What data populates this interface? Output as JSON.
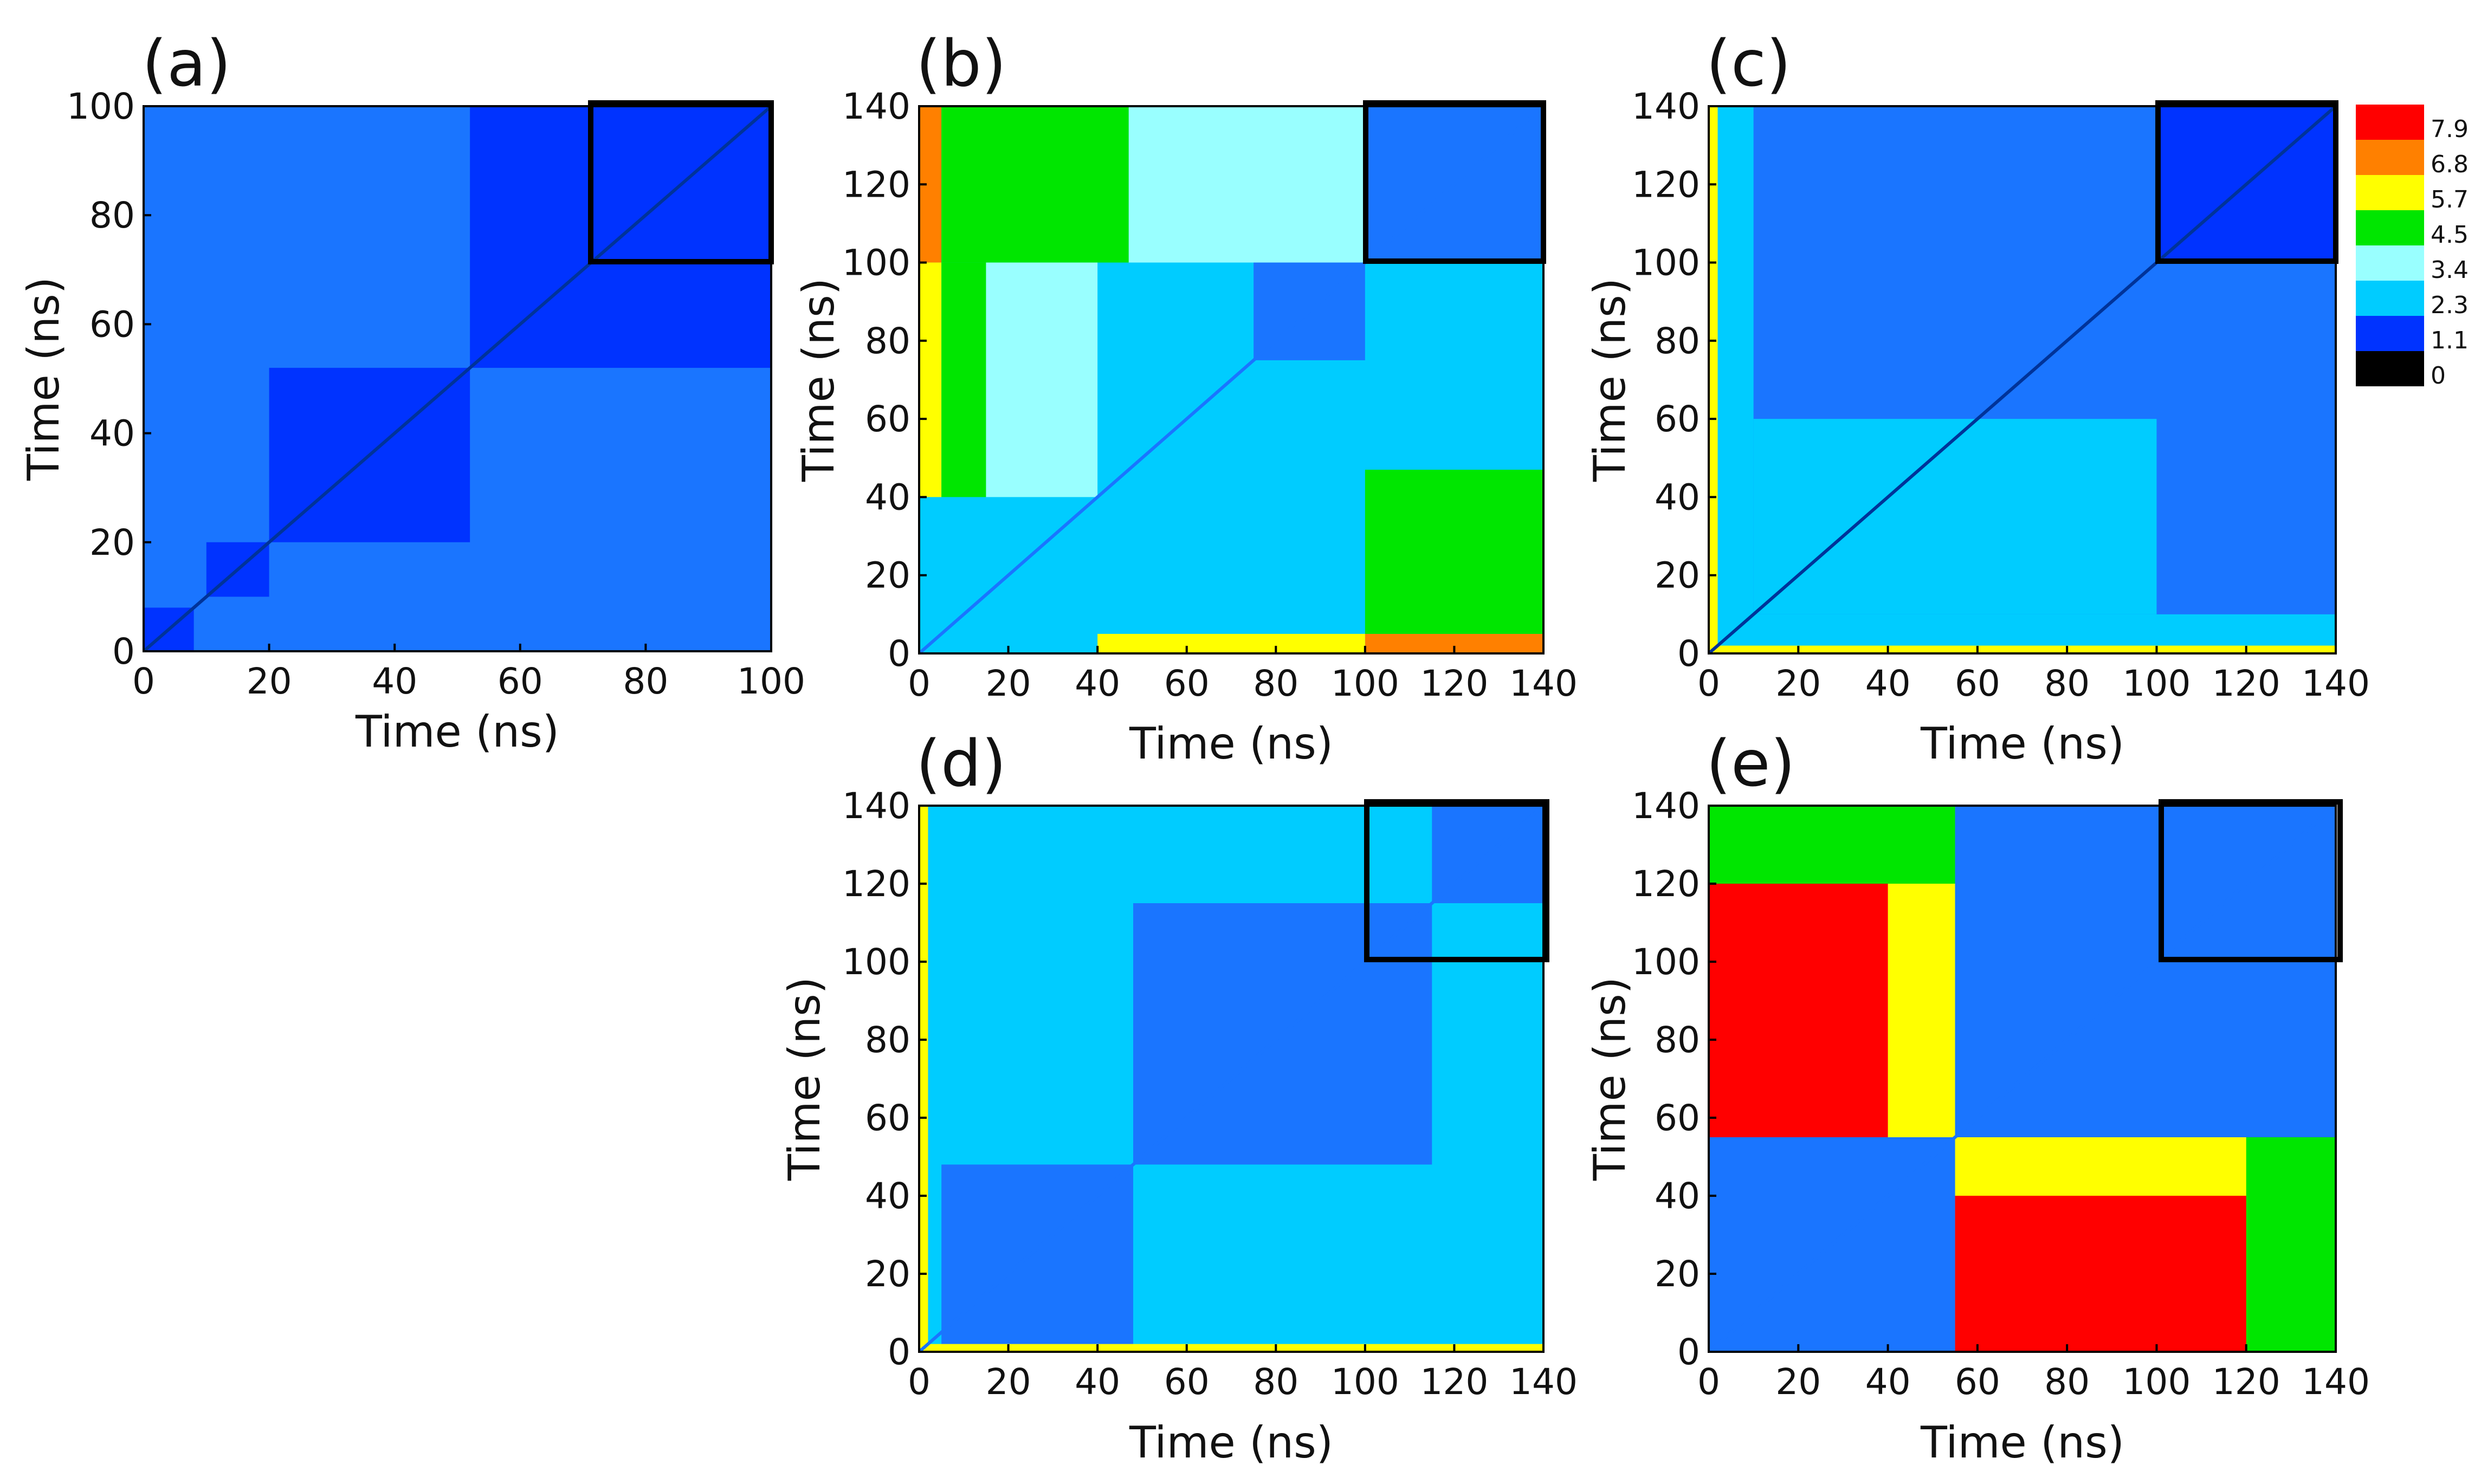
{
  "figure": {
    "colorbar": {
      "labels": [
        "7.9",
        "6.8",
        "5.7",
        "4.5",
        "3.4",
        "2.3",
        "1.1",
        "0"
      ],
      "colors": [
        "#ff0000",
        "#ff8000",
        "#ffff00",
        "#00e600",
        "#99ffff",
        "#00ccff",
        "#0033ff",
        "#000000"
      ]
    }
  },
  "chart_data": [
    {
      "type": "heatmap",
      "panel_label": "(a)",
      "xlabel": "Time (ns)",
      "ylabel": "Time (ns)",
      "xlim": [
        0,
        100
      ],
      "ylim": [
        0,
        100
      ],
      "xticks": [
        "0",
        "20",
        "40",
        "60",
        "80",
        "100"
      ],
      "yticks": [
        "0",
        "20",
        "40",
        "60",
        "80",
        "100"
      ],
      "background_color": "#1a75ff",
      "highlight_box": {
        "x": [
          73,
          100
        ],
        "y": [
          73,
          100
        ]
      },
      "regions": [
        {
          "x": [
            0,
            100
          ],
          "y": [
            0,
            100
          ],
          "color": "#1a75ff"
        },
        {
          "x": [
            52,
            100
          ],
          "y": [
            52,
            100
          ],
          "color": "#0033ff"
        },
        {
          "x": [
            20,
            52
          ],
          "y": [
            20,
            52
          ],
          "color": "#0033ff"
        },
        {
          "x": [
            10,
            20
          ],
          "y": [
            10,
            20
          ],
          "color": "#0033ff"
        },
        {
          "x": [
            0,
            8
          ],
          "y": [
            0,
            8
          ],
          "color": "#0033ff"
        }
      ]
    },
    {
      "type": "heatmap",
      "panel_label": "(b)",
      "xlabel": "Time (ns)",
      "ylabel": "Time (ns)",
      "xlim": [
        0,
        140
      ],
      "ylim": [
        0,
        140
      ],
      "xticks": [
        "0",
        "20",
        "40",
        "60",
        "80",
        "100",
        "120",
        "140"
      ],
      "yticks": [
        "0",
        "20",
        "40",
        "60",
        "80",
        "100",
        "120",
        "140"
      ],
      "background_color": "#00ccff",
      "highlight_box": {
        "x": [
          100,
          140
        ],
        "y": [
          100,
          140
        ]
      },
      "regions": [
        {
          "x": [
            0,
            140
          ],
          "y": [
            0,
            140
          ],
          "color": "#00ccff"
        },
        {
          "x": [
            100,
            140
          ],
          "y": [
            100,
            140
          ],
          "color": "#1a75ff"
        },
        {
          "x": [
            0,
            5
          ],
          "y": [
            100,
            140
          ],
          "color": "#ff8000"
        },
        {
          "x": [
            5,
            47
          ],
          "y": [
            100,
            140
          ],
          "color": "#00e600"
        },
        {
          "x": [
            0,
            5
          ],
          "y": [
            40,
            100
          ],
          "color": "#ffff00"
        },
        {
          "x": [
            5,
            15
          ],
          "y": [
            40,
            100
          ],
          "color": "#00e600"
        },
        {
          "x": [
            100,
            140
          ],
          "y": [
            0,
            5
          ],
          "color": "#ff8000"
        },
        {
          "x": [
            100,
            140
          ],
          "y": [
            5,
            47
          ],
          "color": "#00e600"
        },
        {
          "x": [
            40,
            100
          ],
          "y": [
            0,
            5
          ],
          "color": "#ffff00"
        },
        {
          "x": [
            15,
            40
          ],
          "y": [
            40,
            100
          ],
          "color": "#99ffff"
        },
        {
          "x": [
            47,
            100
          ],
          "y": [
            100,
            140
          ],
          "color": "#99ffff"
        },
        {
          "x": [
            75,
            100
          ],
          "y": [
            75,
            100
          ],
          "color": "#1a75ff"
        }
      ]
    },
    {
      "type": "heatmap",
      "panel_label": "(c)",
      "xlabel": "Time (ns)",
      "ylabel": "Time (ns)",
      "xlim": [
        0,
        140
      ],
      "ylim": [
        0,
        140
      ],
      "xticks": [
        "0",
        "20",
        "40",
        "60",
        "80",
        "100",
        "120",
        "140"
      ],
      "yticks": [
        "0",
        "20",
        "40",
        "60",
        "80",
        "100",
        "120",
        "140"
      ],
      "background_color": "#1a75ff",
      "highlight_box": {
        "x": [
          100,
          140
        ],
        "y": [
          100,
          140
        ]
      },
      "regions": [
        {
          "x": [
            0,
            140
          ],
          "y": [
            0,
            140
          ],
          "color": "#1a75ff"
        },
        {
          "x": [
            0,
            10
          ],
          "y": [
            0,
            140
          ],
          "color": "#00ccff"
        },
        {
          "x": [
            0,
            140
          ],
          "y": [
            0,
            10
          ],
          "color": "#00ccff"
        },
        {
          "x": [
            0,
            2
          ],
          "y": [
            0,
            140
          ],
          "color": "#ffff00"
        },
        {
          "x": [
            0,
            140
          ],
          "y": [
            0,
            2
          ],
          "color": "#ffff00"
        },
        {
          "x": [
            100,
            140
          ],
          "y": [
            100,
            140
          ],
          "color": "#0033ff"
        },
        {
          "x": [
            10,
            100
          ],
          "y": [
            10,
            60
          ],
          "color": "#00ccff"
        }
      ]
    },
    {
      "type": "heatmap",
      "panel_label": "(d)",
      "xlabel": "Time (ns)",
      "ylabel": "Time (ns)",
      "xlim": [
        0,
        140
      ],
      "ylim": [
        0,
        140
      ],
      "xticks": [
        "0",
        "20",
        "40",
        "60",
        "80",
        "100",
        "120",
        "140"
      ],
      "yticks": [
        "0",
        "20",
        "40",
        "60",
        "80",
        "100",
        "120",
        "140"
      ],
      "background_color": "#00ccff",
      "highlight_box": {
        "x": [
          100,
          140
        ],
        "y": [
          100,
          140
        ]
      },
      "regions": [
        {
          "x": [
            0,
            140
          ],
          "y": [
            0,
            140
          ],
          "color": "#00ccff"
        },
        {
          "x": [
            48,
            115
          ],
          "y": [
            48,
            115
          ],
          "color": "#1a75ff"
        },
        {
          "x": [
            5,
            48
          ],
          "y": [
            0,
            48
          ],
          "color": "#1a75ff"
        },
        {
          "x": [
            115,
            140
          ],
          "y": [
            115,
            140
          ],
          "color": "#1a75ff"
        },
        {
          "x": [
            0,
            2
          ],
          "y": [
            0,
            140
          ],
          "color": "#ffff00"
        },
        {
          "x": [
            0,
            140
          ],
          "y": [
            0,
            2
          ],
          "color": "#ffff00"
        }
      ]
    },
    {
      "type": "heatmap",
      "panel_label": "(e)",
      "xlabel": "Time (ns)",
      "ylabel": "Time (ns)",
      "xlim": [
        0,
        140
      ],
      "ylim": [
        0,
        140
      ],
      "xticks": [
        "0",
        "20",
        "40",
        "60",
        "80",
        "100",
        "120",
        "140"
      ],
      "yticks": [
        "0",
        "20",
        "40",
        "60",
        "80",
        "100",
        "120",
        "140"
      ],
      "background_color": "#00ccff",
      "highlight_box": {
        "x": [
          100,
          140
        ],
        "y": [
          100,
          140
        ]
      },
      "regions": [
        {
          "x": [
            0,
            140
          ],
          "y": [
            0,
            140
          ],
          "color": "#00ccff"
        },
        {
          "x": [
            0,
            55
          ],
          "y": [
            55,
            140
          ],
          "color": "#ffff00"
        },
        {
          "x": [
            0,
            55
          ],
          "y": [
            120,
            140
          ],
          "color": "#00e600"
        },
        {
          "x": [
            0,
            40
          ],
          "y": [
            55,
            120
          ],
          "color": "#ff0000"
        },
        {
          "x": [
            55,
            140
          ],
          "y": [
            0,
            55
          ],
          "color": "#ffff00"
        },
        {
          "x": [
            120,
            140
          ],
          "y": [
            0,
            55
          ],
          "color": "#00e600"
        },
        {
          "x": [
            55,
            120
          ],
          "y": [
            0,
            40
          ],
          "color": "#ff0000"
        },
        {
          "x": [
            55,
            140
          ],
          "y": [
            55,
            140
          ],
          "color": "#1a75ff"
        },
        {
          "x": [
            0,
            55
          ],
          "y": [
            0,
            55
          ],
          "color": "#1a75ff"
        }
      ]
    }
  ]
}
